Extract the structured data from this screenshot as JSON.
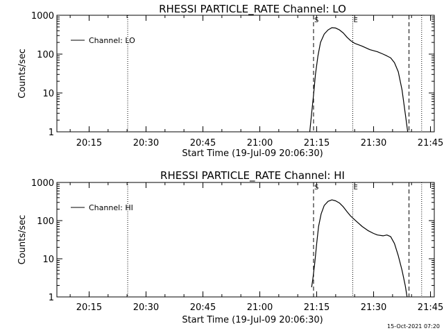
{
  "chart_data": [
    {
      "type": "line",
      "title": "RHESSI PARTICLE_RATE Channel: LO",
      "xlabel": "Start Time (19-Jul-09 20:06:30)",
      "ylabel": "Counts/sec",
      "yscale": "log",
      "ylim": [
        1,
        1000
      ],
      "xlim": [
        "20:06:30",
        "21:46:00"
      ],
      "grid": false,
      "legend_position": "top-left",
      "x_ticks": [
        "20:15",
        "20:30",
        "20:45",
        "21:00",
        "21:15",
        "21:30",
        "21:45"
      ],
      "y_ticks": [
        "1",
        "10",
        "100",
        "1000"
      ],
      "markers": [
        {
          "label": "S",
          "x": "21:14:10"
        },
        {
          "label": "E",
          "x": "21:24:30"
        }
      ],
      "dashed_lines_x": [
        "21:14:10",
        "21:39:20"
      ],
      "dotted_lines_x": [
        "20:25:10",
        "21:24:30",
        "21:42:40"
      ],
      "series": [
        {
          "name": "Channel: LO",
          "x": [
            "21:13:10",
            "21:13:40",
            "21:14:10",
            "21:14:40",
            "21:15:20",
            "21:16:00",
            "21:17:00",
            "21:18:00",
            "21:19:00",
            "21:20:00",
            "21:21:00",
            "21:22:00",
            "21:23:00",
            "21:24:00",
            "21:25:00",
            "21:27:00",
            "21:29:00",
            "21:31:00",
            "21:32:30",
            "21:33:30",
            "21:34:30",
            "21:35:30",
            "21:36:30",
            "21:37:30",
            "21:38:20",
            "21:39:00"
          ],
          "y": [
            1,
            3,
            9,
            30,
            90,
            200,
            330,
            420,
            480,
            470,
            420,
            350,
            270,
            220,
            190,
            160,
            130,
            115,
            100,
            90,
            80,
            60,
            35,
            12,
            3,
            1
          ]
        }
      ]
    },
    {
      "type": "line",
      "title": "RHESSI PARTICLE_RATE Channel: HI",
      "xlabel": "Start Time (19-Jul-09 20:06:30)",
      "ylabel": "Counts/sec",
      "yscale": "log",
      "ylim": [
        1,
        1000
      ],
      "xlim": [
        "20:06:30",
        "21:46:00"
      ],
      "grid": false,
      "legend_position": "top-left",
      "x_ticks": [
        "20:15",
        "20:30",
        "20:45",
        "21:00",
        "21:15",
        "21:30",
        "21:45"
      ],
      "y_ticks": [
        "1",
        "10",
        "100",
        "1000"
      ],
      "markers": [
        {
          "label": "S",
          "x": "21:14:10"
        },
        {
          "label": "E",
          "x": "21:24:30"
        }
      ],
      "dashed_lines_x": [
        "21:14:10",
        "21:39:20"
      ],
      "dotted_lines_x": [
        "20:25:10",
        "21:24:30",
        "21:42:40"
      ],
      "series": [
        {
          "name": "Channel: HI",
          "x": [
            "21:13:40",
            "21:14:00",
            "21:14:30",
            "21:15:00",
            "21:15:30",
            "21:16:10",
            "21:17:00",
            "21:18:00",
            "21:19:00",
            "21:20:00",
            "21:21:00",
            "21:22:00",
            "21:23:00",
            "21:24:00",
            "21:25:30",
            "21:27:00",
            "21:28:30",
            "21:30:00",
            "21:31:00",
            "21:32:30",
            "21:33:30",
            "21:34:30",
            "21:35:30",
            "21:36:30",
            "21:37:30",
            "21:38:20",
            "21:38:50"
          ],
          "y": [
            1.8,
            3,
            8,
            25,
            70,
            150,
            250,
            320,
            350,
            330,
            290,
            230,
            170,
            130,
            95,
            70,
            55,
            46,
            42,
            40,
            42,
            38,
            25,
            12,
            5,
            2,
            1
          ]
        }
      ]
    }
  ],
  "footer": {
    "timestamp": "15-Oct-2021 07:20"
  }
}
